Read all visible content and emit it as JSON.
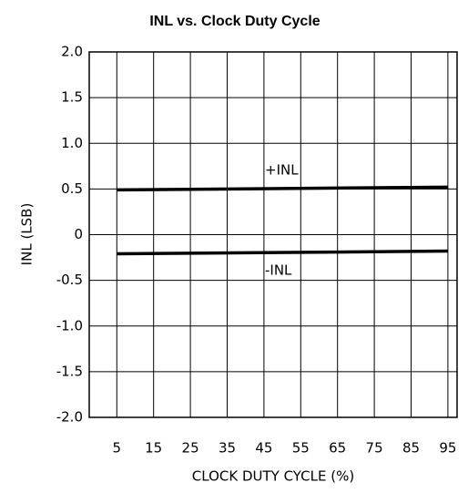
{
  "chart_data": {
    "type": "line",
    "title": "INL vs. Clock Duty Cycle",
    "xlabel": "CLOCK DUTY CYCLE (%)",
    "ylabel": "INL (LSB)",
    "x": [
      5,
      95
    ],
    "series": [
      {
        "name": "+INL",
        "color": "#000000",
        "values": [
          0.49,
          0.52
        ]
      },
      {
        "name": "-INL",
        "color": "#000000",
        "values": [
          -0.21,
          -0.18
        ]
      }
    ],
    "xlim": [
      -2.5,
      97.5
    ],
    "xticks": [
      5,
      15,
      25,
      35,
      45,
      55,
      65,
      75,
      85,
      95
    ],
    "ylim": [
      -2,
      2
    ],
    "yticks": [
      {
        "value": -2,
        "label": "-2.0"
      },
      -1.5,
      {
        "value": -1,
        "label": "-1.0"
      },
      -0.5,
      0,
      0.5,
      {
        "value": 1,
        "label": "1.0"
      },
      1.5,
      {
        "value": 2,
        "label": "2.0"
      }
    ],
    "grid": true
  }
}
